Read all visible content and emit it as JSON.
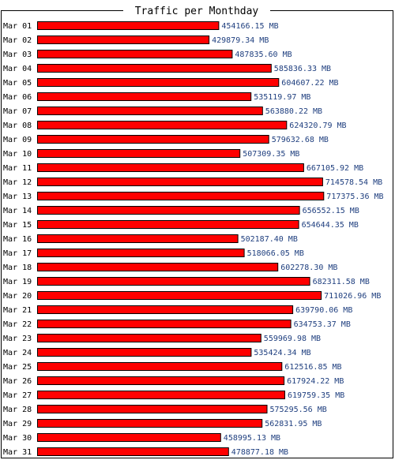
{
  "chart_data": {
    "type": "bar",
    "orientation": "horizontal",
    "title": "Traffic per Monthday",
    "unit": "MB",
    "bar_color": "#ff0000",
    "bar_outline_color": "#000000",
    "value_label_color": "#1f3f7f",
    "xlim": [
      0,
      870000
    ],
    "grid": false,
    "categories": [
      "Mar 01",
      "Mar 02",
      "Mar 03",
      "Mar 04",
      "Mar 05",
      "Mar 06",
      "Mar 07",
      "Mar 08",
      "Mar 09",
      "Mar 10",
      "Mar 11",
      "Mar 12",
      "Mar 13",
      "Mar 14",
      "Mar 15",
      "Mar 16",
      "Mar 17",
      "Mar 18",
      "Mar 19",
      "Mar 20",
      "Mar 21",
      "Mar 22",
      "Mar 23",
      "Mar 24",
      "Mar 25",
      "Mar 26",
      "Mar 27",
      "Mar 28",
      "Mar 29",
      "Mar 30",
      "Mar 31"
    ],
    "values": [
      454166.15,
      429879.34,
      487835.6,
      585836.33,
      604607.22,
      535119.97,
      563880.22,
      624320.79,
      579632.68,
      507309.35,
      667105.92,
      714578.54,
      717375.36,
      656552.15,
      654644.35,
      502187.4,
      518066.05,
      602278.3,
      682311.58,
      711026.96,
      639790.06,
      634753.37,
      559969.98,
      535424.34,
      612516.85,
      617924.22,
      619759.35,
      575295.56,
      562831.95,
      458995.13,
      478877.18
    ],
    "value_labels": [
      "454166.15 MB",
      "429879.34 MB",
      "487835.60 MB",
      "585836.33 MB",
      "604607.22 MB",
      "535119.97 MB",
      "563880.22 MB",
      "624320.79 MB",
      "579632.68 MB",
      "507309.35 MB",
      "667105.92 MB",
      "714578.54 MB",
      "717375.36 MB",
      "656552.15 MB",
      "654644.35 MB",
      "502187.40 MB",
      "518066.05 MB",
      "602278.30 MB",
      "682311.58 MB",
      "711026.96 MB",
      "639790.06 MB",
      "634753.37 MB",
      "559969.98 MB",
      "535424.34 MB",
      "612516.85 MB",
      "617924.22 MB",
      "619759.35 MB",
      "575295.56 MB",
      "562831.95 MB",
      "458995.13 MB",
      "478877.18 MB"
    ]
  }
}
